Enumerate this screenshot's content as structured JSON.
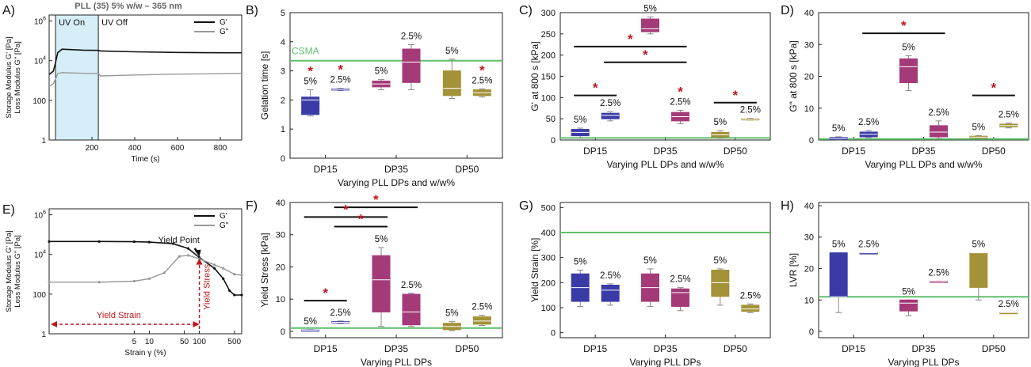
{
  "figure": {
    "title": "PLL (35) 5% w/w – 365 nm"
  },
  "colors": {
    "DP15": "#3b3ba8",
    "DP35": "#a43a78",
    "DP50": "#a39238",
    "ref": "#5fbf6b",
    "star": "#c0161b",
    "Gp": "#111111",
    "Gpp": "#999999",
    "uv": "#d6eef8"
  },
  "chart_data": [
    {
      "id": "A",
      "type": "line",
      "panel_label": "A)",
      "xlabel": "Time (s)",
      "ylabel_1": "Storage Modulus G' [Pa]",
      "ylabel_2": "Loss Modulus G\" [Pa]",
      "xlim": [
        0,
        900
      ],
      "ylim": [
        1,
        2000000
      ],
      "yscale": "log",
      "xticks": [
        "200",
        "400",
        "600",
        "800"
      ],
      "yticks": [
        "1",
        "100",
        "10^4",
        "10^6"
      ],
      "annotations": [
        "UV On",
        "UV Off"
      ],
      "uv_region": [
        30,
        230
      ],
      "series": [
        {
          "name": "G'",
          "x": [
            0,
            20,
            30,
            40,
            60,
            100,
            160,
            230,
            240,
            400,
            600,
            800,
            900
          ],
          "y": [
            2000,
            3000,
            8000,
            25000,
            38000,
            36000,
            34000,
            33000,
            31000,
            28000,
            26000,
            25000,
            25000
          ]
        },
        {
          "name": "G\"",
          "x": [
            0,
            20,
            30,
            40,
            60,
            100,
            160,
            230,
            240,
            400,
            600,
            800,
            900
          ],
          "y": [
            500,
            700,
            1200,
            2200,
            2500,
            2400,
            2300,
            2300,
            1700,
            1900,
            2100,
            2200,
            2300
          ]
        }
      ]
    },
    {
      "id": "B",
      "type": "box",
      "panel_label": "B)",
      "xlabel": "Varying PLL DPs and w/w%",
      "ylabel": "Gelation time [s]",
      "ylim": [
        0,
        5
      ],
      "yticks": [
        "0",
        "1",
        "2",
        "3",
        "4",
        "5"
      ],
      "categories": [
        "DP15",
        "DP35",
        "DP50"
      ],
      "reference": {
        "label": "CSMA",
        "value": 3.35
      },
      "boxes": [
        {
          "group": "DP15",
          "label": "5%",
          "min": 1.45,
          "q1": 1.5,
          "median": 2.0,
          "q3": 2.1,
          "max": 2.35,
          "star": true
        },
        {
          "group": "DP15",
          "label": "2.5%",
          "min": 2.32,
          "q1": 2.34,
          "median": 2.36,
          "q3": 2.38,
          "max": 2.4,
          "star": true
        },
        {
          "group": "DP35",
          "label": "5%",
          "min": 2.35,
          "q1": 2.45,
          "median": 2.55,
          "q3": 2.65,
          "max": 2.7,
          "star": false
        },
        {
          "group": "DP35",
          "label": "2.5%",
          "min": 2.35,
          "q1": 2.6,
          "median": 3.3,
          "q3": 3.75,
          "max": 3.9,
          "star": false
        },
        {
          "group": "DP50",
          "label": "5%",
          "min": 2.05,
          "q1": 2.15,
          "median": 2.4,
          "q3": 3.0,
          "max": 3.4,
          "star": false
        },
        {
          "group": "DP50",
          "label": "2.5%",
          "min": 2.1,
          "q1": 2.15,
          "median": 2.25,
          "q3": 2.35,
          "max": 2.38,
          "star": true
        }
      ],
      "significance": []
    },
    {
      "id": "C",
      "type": "box",
      "panel_label": "C)",
      "xlabel": "Varying PLL DPs and w/w%",
      "ylabel": "G' at 800 s [kPa]",
      "ylim": [
        0,
        300
      ],
      "yticks": [
        "0",
        "50",
        "100",
        "150",
        "200",
        "250",
        "300"
      ],
      "categories": [
        "DP15",
        "DP35",
        "DP50"
      ],
      "reference": {
        "label": "",
        "value": 5
      },
      "boxes": [
        {
          "group": "DP15",
          "label": "5%",
          "min": 5,
          "q1": 10,
          "median": 18,
          "q3": 25,
          "max": 28,
          "star": false
        },
        {
          "group": "DP15",
          "label": "2.5%",
          "min": 45,
          "q1": 50,
          "median": 58,
          "q3": 63,
          "max": 67,
          "star": false
        },
        {
          "group": "DP35",
          "label": "5%",
          "min": 250,
          "q1": 255,
          "median": 262,
          "q3": 285,
          "max": 290,
          "star": false
        },
        {
          "group": "DP35",
          "label": "2.5%",
          "min": 38,
          "q1": 45,
          "median": 55,
          "q3": 65,
          "max": 70,
          "star": true
        },
        {
          "group": "DP50",
          "label": "5%",
          "min": 4,
          "q1": 7,
          "median": 12,
          "q3": 18,
          "max": 22,
          "star": false
        },
        {
          "group": "DP50",
          "label": "2.5%",
          "min": 47,
          "q1": 48,
          "median": 49,
          "q3": 50,
          "max": 51,
          "star": false
        }
      ],
      "significance": [
        {
          "from": 0,
          "to": 3,
          "value": 220
        },
        {
          "from": 1,
          "to": 3,
          "value": 183
        },
        {
          "from": 0,
          "to": 1,
          "value": 105
        },
        {
          "from": 4,
          "to": 5,
          "value": 88
        }
      ]
    },
    {
      "id": "D",
      "type": "box",
      "panel_label": "D)",
      "xlabel": "Varying PLL DPs and w/w%",
      "ylabel": "G\" at 800 s [kPa]",
      "ylim": [
        0,
        40
      ],
      "yticks": [
        "0",
        "10",
        "20",
        "30",
        "40"
      ],
      "categories": [
        "DP15",
        "DP35",
        "DP50"
      ],
      "reference": {
        "label": "",
        "value": 0.3
      },
      "boxes": [
        {
          "group": "DP15",
          "label": "5%",
          "min": 0.1,
          "q1": 0.2,
          "median": 0.5,
          "q3": 0.8,
          "max": 1.0,
          "star": false
        },
        {
          "group": "DP15",
          "label": "2.5%",
          "min": 0.8,
          "q1": 1.0,
          "median": 1.8,
          "q3": 2.5,
          "max": 3.0,
          "star": false
        },
        {
          "group": "DP35",
          "label": "5%",
          "min": 15.5,
          "q1": 18,
          "median": 23,
          "q3": 25.5,
          "max": 26.5,
          "star": false
        },
        {
          "group": "DP35",
          "label": "2.5%",
          "min": 0.5,
          "q1": 1.0,
          "median": 2.5,
          "q3": 4.5,
          "max": 6.0,
          "star": false
        },
        {
          "group": "DP50",
          "label": "5%",
          "min": 0.5,
          "q1": 0.6,
          "median": 0.9,
          "q3": 1.2,
          "max": 1.4,
          "star": false
        },
        {
          "group": "DP50",
          "label": "2.5%",
          "min": 3.8,
          "q1": 4.1,
          "median": 4.5,
          "q3": 5.0,
          "max": 5.3,
          "star": false
        }
      ],
      "significance": [
        {
          "from": 1,
          "to": 3,
          "value": 33.5
        },
        {
          "from": 4,
          "to": 5,
          "value": 14
        }
      ]
    },
    {
      "id": "E",
      "type": "line",
      "panel_label": "E)",
      "xlabel": "Strain γ (%)",
      "ylabel_1": "Storage Modulus G' [Pa]",
      "ylabel_2": "Loss Modulus G\" [Pa]",
      "xlim": [
        0.1,
        700
      ],
      "ylim": [
        1,
        2000000
      ],
      "xscale": "log",
      "yscale": "log",
      "xticks": [
        "5",
        "10",
        "50",
        "100",
        "500"
      ],
      "yticks": [
        "1",
        "100",
        "10^4",
        "10^6"
      ],
      "annotations": [
        "Yield Point",
        "Yield Strain",
        "Yield Stress"
      ],
      "yield_x": 100,
      "series": [
        {
          "name": "G'",
          "x": [
            0.1,
            1,
            5,
            10,
            30,
            60,
            100,
            200,
            300,
            400,
            500,
            700
          ],
          "y": [
            45000,
            45000,
            44000,
            42000,
            35000,
            20000,
            7000,
            2000,
            600,
            150,
            90,
            90
          ]
        },
        {
          "name": "G\"",
          "x": [
            0.1,
            1,
            5,
            10,
            20,
            40,
            60,
            100,
            200,
            300,
            500,
            700
          ],
          "y": [
            400,
            400,
            450,
            600,
            1200,
            8000,
            9000,
            6000,
            3000,
            2000,
            1000,
            900
          ]
        }
      ]
    },
    {
      "id": "F",
      "type": "box",
      "panel_label": "F)",
      "xlabel": "Varying PLL DPs",
      "ylabel": "Yield Stress [kPa]",
      "ylim": [
        -2,
        40
      ],
      "yticks": [
        "0",
        "10",
        "20",
        "30",
        "40"
      ],
      "categories": [
        "DP15",
        "DP35",
        "DP50"
      ],
      "reference": {
        "label": "",
        "value": 1
      },
      "boxes": [
        {
          "group": "DP15",
          "label": "5%",
          "min": 0.1,
          "q1": 0.2,
          "median": 0.3,
          "q3": 0.4,
          "max": 0.5,
          "star": false
        },
        {
          "group": "DP15",
          "label": "2.5%",
          "min": 2.4,
          "q1": 2.6,
          "median": 2.8,
          "q3": 3.0,
          "max": 3.2,
          "star": false
        },
        {
          "group": "DP35",
          "label": "5%",
          "min": 1.5,
          "q1": 6,
          "median": 16,
          "q3": 23.5,
          "max": 26,
          "star": false
        },
        {
          "group": "DP35",
          "label": "2.5%",
          "min": 1.5,
          "q1": 2,
          "median": 6,
          "q3": 11.5,
          "max": 11.8,
          "star": false
        },
        {
          "group": "DP50",
          "label": "5%",
          "min": 0.2,
          "q1": 0.5,
          "median": 1.5,
          "q3": 2.5,
          "max": 3.0,
          "star": false
        },
        {
          "group": "DP50",
          "label": "2.5%",
          "min": 1.8,
          "q1": 2.2,
          "median": 3.2,
          "q3": 4.5,
          "max": 5.0,
          "star": false
        }
      ],
      "significance": [
        {
          "from": 1,
          "to": 3,
          "value": 38.5
        },
        {
          "from": 0,
          "to": 2,
          "value": 35.5
        },
        {
          "from": 1,
          "to": 2,
          "value": 32.5
        },
        {
          "from": 0,
          "to": 1,
          "value": 9.5
        }
      ]
    },
    {
      "id": "G",
      "type": "box",
      "panel_label": "G)",
      "xlabel": "Varying PLL DPs",
      "ylabel": "Yield Strain [%]",
      "ylim": [
        -20,
        520
      ],
      "yticks": [
        "0",
        "100",
        "200",
        "300",
        "400",
        "500"
      ],
      "categories": [
        "DP15",
        "DP35",
        "DP50"
      ],
      "reference": {
        "label": "",
        "value": 400
      },
      "boxes": [
        {
          "group": "DP15",
          "label": "5%",
          "min": 105,
          "q1": 125,
          "median": 180,
          "q3": 235,
          "max": 250,
          "star": false
        },
        {
          "group": "DP15",
          "label": "2.5%",
          "min": 110,
          "q1": 125,
          "median": 170,
          "q3": 190,
          "max": 195,
          "star": false
        },
        {
          "group": "DP35",
          "label": "5%",
          "min": 105,
          "q1": 125,
          "median": 180,
          "q3": 235,
          "max": 255,
          "star": false
        },
        {
          "group": "DP35",
          "label": "2.5%",
          "min": 88,
          "q1": 105,
          "median": 160,
          "q3": 175,
          "max": 180,
          "star": false
        },
        {
          "group": "DP50",
          "label": "5%",
          "min": 110,
          "q1": 145,
          "median": 200,
          "q3": 250,
          "max": 255,
          "star": false
        },
        {
          "group": "DP50",
          "label": "2.5%",
          "min": 80,
          "q1": 85,
          "median": 95,
          "q3": 110,
          "max": 115,
          "star": false
        }
      ],
      "significance": []
    },
    {
      "id": "H",
      "type": "box",
      "panel_label": "H)",
      "xlabel": "Varying PLL DPs",
      "ylabel": "LVR [%]",
      "ylim": [
        -2,
        41
      ],
      "yticks": [
        "0",
        "10",
        "20",
        "30",
        "40"
      ],
      "categories": [
        "DP15",
        "DP35",
        "DP50"
      ],
      "reference": {
        "label": "",
        "value": 11
      },
      "boxes": [
        {
          "group": "DP15",
          "label": "5%",
          "min": 6,
          "q1": 11,
          "median": 11,
          "q3": 25,
          "max": 25,
          "star": false
        },
        {
          "group": "DP15",
          "label": "2.5%",
          "min": 25,
          "q1": 25,
          "median": 25,
          "q3": 25,
          "max": 25,
          "star": false
        },
        {
          "group": "DP35",
          "label": "5%",
          "min": 5,
          "q1": 6.5,
          "median": 9,
          "q3": 10,
          "max": 10,
          "star": false
        },
        {
          "group": "DP35",
          "label": "2.5%",
          "min": 16,
          "q1": 16,
          "median": 16,
          "q3": 16,
          "max": 16,
          "star": false
        },
        {
          "group": "DP50",
          "label": "5%",
          "min": 10,
          "q1": 14,
          "median": 25,
          "q3": 25,
          "max": 25,
          "star": false
        },
        {
          "group": "DP50",
          "label": "2.5%",
          "min": 6,
          "q1": 6,
          "median": 6,
          "q3": 6,
          "max": 6,
          "star": false
        }
      ],
      "significance": []
    }
  ]
}
